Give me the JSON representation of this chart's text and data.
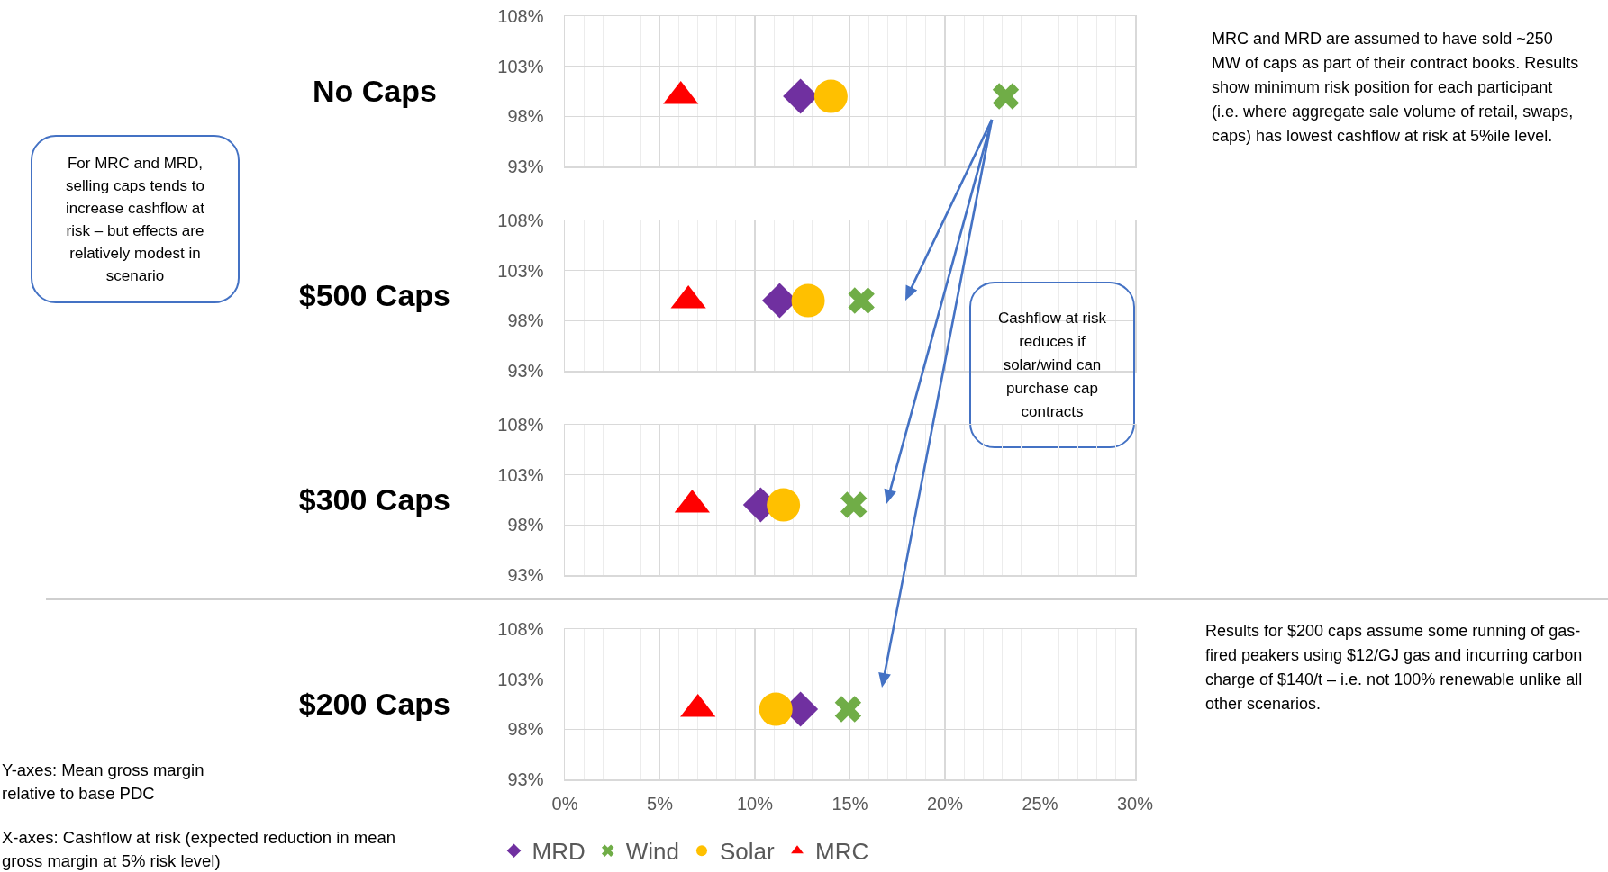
{
  "chart_data": [
    {
      "type": "scatter",
      "title": "No Caps",
      "tick_labels": "y",
      "grid": true,
      "xlim": [
        0,
        30
      ],
      "xticks": [
        0,
        5,
        10,
        15,
        20,
        25,
        30
      ],
      "ylim": [
        93,
        108
      ],
      "yticks": [
        {
          "value": 93,
          "label": "93%"
        },
        {
          "value": 98,
          "label": "98%"
        },
        {
          "value": 103,
          "label": "103%"
        },
        {
          "value": 108,
          "label": "108%"
        }
      ],
      "series": [
        {
          "color": "#7030a0",
          "marker": "diamond",
          "x": [
            12.4
          ],
          "values": [
            100
          ]
        },
        {
          "color": "#70ad47",
          "marker": "cross",
          "x": [
            23.2
          ],
          "values": [
            100
          ]
        },
        {
          "color": "#ffc000",
          "marker": "circle",
          "x": [
            14.0
          ],
          "values": [
            100
          ]
        },
        {
          "color": "#ff0000",
          "marker": "triangle",
          "x": [
            6.1
          ],
          "values": [
            100
          ]
        }
      ],
      "annotations": [
        "For MRC and MRD, selling caps tends to increase cashflow at risk – but effects are relatively modest in scenario",
        "MRC and MRD are assumed to have sold ~250 MW of caps as part of their contract books. Results show minimum risk position for each participant (i.e. where aggregate sale volume of retail, swaps, caps) has lowest cashflow at risk at 5%ile level."
      ]
    },
    {
      "type": "scatter",
      "title": "$500 Caps",
      "tick_labels": "y",
      "grid": true,
      "xlim": [
        0,
        30
      ],
      "xticks": [
        0,
        5,
        10,
        15,
        20,
        25,
        30
      ],
      "ylim": [
        93,
        108
      ],
      "yticks": [
        {
          "value": 93,
          "label": "93%"
        },
        {
          "value": 98,
          "label": "98%"
        },
        {
          "value": 103,
          "label": "103%"
        },
        {
          "value": 108,
          "label": "108%"
        }
      ],
      "series": [
        {
          "color": "#7030a0",
          "marker": "diamond",
          "x": [
            11.3
          ],
          "values": [
            100
          ]
        },
        {
          "color": "#70ad47",
          "marker": "cross",
          "x": [
            15.6
          ],
          "values": [
            100
          ]
        },
        {
          "color": "#ffc000",
          "marker": "circle",
          "x": [
            12.8
          ],
          "values": [
            100
          ]
        },
        {
          "color": "#ff0000",
          "marker": "triangle",
          "x": [
            6.5
          ],
          "values": [
            100
          ]
        }
      ],
      "annotations": [
        "Cashflow at risk reduces if solar/wind can purchase cap contracts"
      ]
    },
    {
      "type": "scatter",
      "title": "$300 Caps",
      "tick_labels": "y",
      "grid": true,
      "xlim": [
        0,
        30
      ],
      "xticks": [
        0,
        5,
        10,
        15,
        20,
        25,
        30
      ],
      "ylim": [
        93,
        108
      ],
      "yticks": [
        {
          "value": 93,
          "label": "93%"
        },
        {
          "value": 98,
          "label": "98%"
        },
        {
          "value": 103,
          "label": "103%"
        },
        {
          "value": 108,
          "label": "108%"
        }
      ],
      "series": [
        {
          "color": "#7030a0",
          "marker": "diamond",
          "x": [
            10.3
          ],
          "values": [
            100
          ]
        },
        {
          "color": "#70ad47",
          "marker": "cross",
          "x": [
            15.2
          ],
          "values": [
            100
          ]
        },
        {
          "color": "#ffc000",
          "marker": "circle",
          "x": [
            11.5
          ],
          "values": [
            100
          ]
        },
        {
          "color": "#ff0000",
          "marker": "triangle",
          "x": [
            6.7
          ],
          "values": [
            100
          ]
        }
      ]
    },
    {
      "type": "scatter",
      "title": "$200 Caps",
      "grid": true,
      "legend": "bottom",
      "xlim": [
        0,
        30
      ],
      "xticks": [
        {
          "value": 0,
          "label": "0%"
        },
        {
          "value": 5,
          "label": "5%"
        },
        {
          "value": 10,
          "label": "10%"
        },
        {
          "value": 15,
          "label": "15%"
        },
        {
          "value": 20,
          "label": "20%"
        },
        {
          "value": 25,
          "label": "25%"
        },
        {
          "value": 30,
          "label": "30%"
        }
      ],
      "ylim": [
        93,
        108
      ],
      "yticks": [
        {
          "value": 93,
          "label": "93%"
        },
        {
          "value": 98,
          "label": "98%"
        },
        {
          "value": 103,
          "label": "103%"
        },
        {
          "value": 108,
          "label": "108%"
        }
      ],
      "series": [
        {
          "name": "MRD",
          "color": "#7030a0",
          "marker": "diamond",
          "x": [
            12.4
          ],
          "values": [
            100
          ]
        },
        {
          "name": "Wind",
          "color": "#70ad47",
          "marker": "cross",
          "x": [
            14.9
          ],
          "values": [
            100
          ]
        },
        {
          "name": "Solar",
          "color": "#ffc000",
          "marker": "circle",
          "x": [
            11.1
          ],
          "values": [
            100
          ]
        },
        {
          "name": "MRC",
          "color": "#ff0000",
          "marker": "triangle",
          "x": [
            7.0
          ],
          "values": [
            100
          ]
        }
      ],
      "annotations": [
        "Results for $200 caps assume some running of gas-fired peakers using $12/GJ gas and incurring carbon charge of $140/t – i.e. not 100% renewable unlike all other scenarios.",
        "Y-axes: Mean gross margin relative to base PDC",
        "X-axes: Cashflow at risk (expected reduction in mean gross margin at 5% risk level)"
      ]
    }
  ]
}
